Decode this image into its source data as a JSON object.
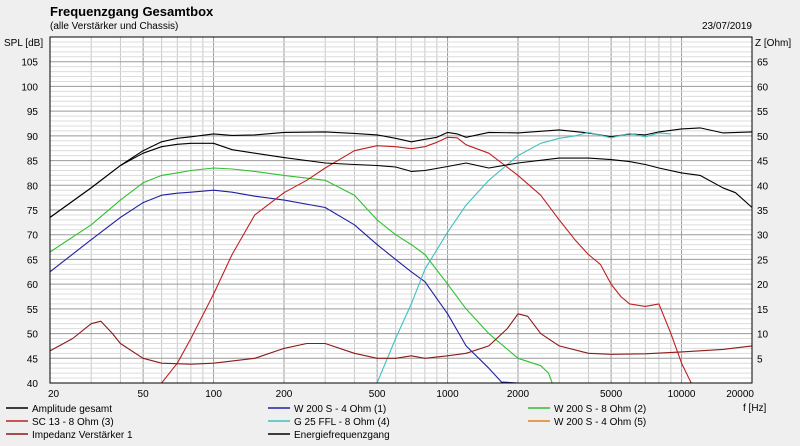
{
  "chart_data": {
    "type": "line",
    "title": "Frequenzgang Gesamtbox",
    "subtitle": "(alle Verstärker und Chassis)",
    "date": "23/07/2019",
    "y_left_label": "SPL [dB]",
    "y_right_label": "Z [Ohm]",
    "x_label": "f [Hz]",
    "x_scale": "log",
    "xlim": [
      20,
      20000
    ],
    "ylim_left": [
      40,
      110
    ],
    "ylim_right": [
      0,
      70
    ],
    "x_ticks": [
      20,
      50,
      100,
      200,
      500,
      1000,
      2000,
      5000,
      10000,
      20000
    ],
    "x_tick_labels": [
      "20",
      "50",
      "100",
      "200",
      "500",
      "1000",
      "2000",
      "5000",
      "10000",
      "20000"
    ],
    "y_left_ticks": [
      40,
      45,
      50,
      55,
      60,
      65,
      70,
      75,
      80,
      85,
      90,
      95,
      100,
      105
    ],
    "y_right_ticks": [
      5,
      10,
      15,
      20,
      25,
      30,
      35,
      40,
      45,
      50,
      55,
      60,
      65
    ],
    "grid": true,
    "series": [
      {
        "name": "Amplitude gesamt",
        "axis": "left",
        "color": "#000000",
        "x": [
          20,
          30,
          40,
          50,
          60,
          70,
          80,
          100,
          120,
          150,
          200,
          300,
          400,
          500,
          600,
          700,
          800,
          900,
          1000,
          1100,
          1200,
          1500,
          2000,
          3000,
          4000,
          5000,
          6000,
          7000,
          8000,
          10000,
          12000,
          15000,
          20000
        ],
        "y": [
          73.5,
          79.5,
          84,
          87,
          88.8,
          89.5,
          89.8,
          90.4,
          90.1,
          90.2,
          90.7,
          90.8,
          90.5,
          90.2,
          89.5,
          88.8,
          89.3,
          89.7,
          90.7,
          90.4,
          89.7,
          90.7,
          90.6,
          91.2,
          90.6,
          89.8,
          90.4,
          90.2,
          90.8,
          91.4,
          91.6,
          90.6,
          90.8
        ]
      },
      {
        "name": "W 200 S - 4 Ohm (1)",
        "axis": "left",
        "color": "#2020a0",
        "x": [
          20,
          30,
          40,
          50,
          60,
          70,
          80,
          100,
          120,
          150,
          200,
          300,
          400,
          500,
          600,
          700,
          800,
          1000,
          1200,
          1500,
          1700,
          2000
        ],
        "y": [
          62.5,
          69,
          73.5,
          76.5,
          78,
          78.4,
          78.6,
          79,
          78.6,
          77.8,
          77,
          75.5,
          72,
          68,
          65,
          62.5,
          60.5,
          54,
          47.5,
          43,
          40.2,
          40
        ]
      },
      {
        "name": "W 200 S - 8 Ohm (2)",
        "axis": "left",
        "color": "#30c030",
        "x": [
          20,
          30,
          40,
          50,
          60,
          70,
          80,
          100,
          120,
          150,
          200,
          300,
          400,
          500,
          600,
          700,
          800,
          1000,
          1200,
          1500,
          2000,
          2500,
          2700,
          2800
        ],
        "y": [
          66.5,
          72,
          77,
          80.5,
          82,
          82.5,
          83,
          83.5,
          83.3,
          82.8,
          82,
          81,
          78,
          73,
          70,
          68,
          66,
          60,
          55,
          50,
          45,
          43.5,
          42,
          40
        ]
      },
      {
        "name": "SC 13 - 8 Ohm (3)",
        "axis": "left",
        "color": "#c02020",
        "x": [
          60,
          70,
          80,
          100,
          120,
          150,
          200,
          250,
          300,
          400,
          500,
          600,
          700,
          800,
          900,
          1000,
          1100,
          1200,
          1500,
          2000,
          2500,
          3000,
          3500,
          4000,
          4500,
          5000,
          5500,
          6000,
          7000,
          8000,
          9000,
          10000,
          11000
        ],
        "y": [
          40,
          44,
          49,
          58,
          66,
          74,
          78.5,
          81,
          83.5,
          87,
          88,
          87.8,
          87.4,
          87.8,
          88.7,
          89.7,
          89.6,
          88.2,
          86.5,
          82,
          78,
          73,
          69,
          66,
          64,
          60,
          57.5,
          56,
          55.5,
          56,
          50,
          44,
          40
        ]
      },
      {
        "name": "G 25 FFL - 8 Ohm (4)",
        "axis": "left",
        "color": "#40c0c0",
        "x": [
          500,
          600,
          700,
          800,
          1000,
          1200,
          1500,
          2000,
          2500,
          3000,
          3500,
          4000,
          5000,
          6000,
          7000,
          8000,
          9000
        ],
        "y": [
          40,
          49,
          56,
          63,
          70.5,
          76,
          81,
          86,
          88.5,
          89.5,
          90,
          90.7,
          89.6,
          90.5,
          89.8,
          90.6,
          90.4
        ]
      },
      {
        "name": "W 200 S - 4 Ohm (5)",
        "axis": "left",
        "color": "#e08020",
        "x": [],
        "y": []
      },
      {
        "name": "Impedanz Verstärker 1",
        "axis": "right",
        "color": "#8b1a1a",
        "x": [
          20,
          25,
          30,
          33,
          37,
          40,
          50,
          60,
          80,
          100,
          150,
          200,
          250,
          300,
          400,
          500,
          600,
          700,
          800,
          1000,
          1200,
          1500,
          1800,
          2000,
          2200,
          2500,
          3000,
          4000,
          5000,
          7000,
          10000,
          15000,
          20000
        ],
        "y": [
          6.5,
          9,
          12,
          12.5,
          10,
          8,
          5,
          4,
          3.8,
          4,
          5,
          7,
          8,
          8,
          6,
          5,
          5,
          5.5,
          5,
          5.5,
          6,
          7.5,
          11,
          14,
          13.5,
          10,
          7.5,
          6,
          5.8,
          5.9,
          6.3,
          6.8,
          7.5
        ]
      },
      {
        "name": "Energiefrequenzgang",
        "axis": "left",
        "color": "#000000",
        "x": [
          20,
          30,
          40,
          50,
          60,
          70,
          80,
          100,
          120,
          150,
          200,
          300,
          400,
          500,
          600,
          700,
          800,
          1000,
          1200,
          1500,
          2000,
          3000,
          4000,
          5000,
          6000,
          7000,
          8000,
          10000,
          12000,
          15000,
          17000,
          20000
        ],
        "y": [
          73.5,
          79.5,
          84,
          86.5,
          87.8,
          88.3,
          88.5,
          88.5,
          87.2,
          86.5,
          85.6,
          84.5,
          84.2,
          84,
          83.7,
          82.8,
          83,
          83.8,
          84.5,
          83.5,
          84.5,
          85.5,
          85.5,
          85.2,
          84.8,
          84.2,
          83.5,
          82.5,
          82,
          79.5,
          78.5,
          75.5
        ]
      }
    ],
    "legend": [
      {
        "label": "Amplitude gesamt",
        "color": "#000000"
      },
      {
        "label": "W 200 S - 4 Ohm (1)",
        "color": "#2020a0"
      },
      {
        "label": "W 200 S - 8 Ohm (2)",
        "color": "#30c030"
      },
      {
        "label": "SC 13 - 8 Ohm (3)",
        "color": "#c02020"
      },
      {
        "label": "G 25 FFL - 8 Ohm (4)",
        "color": "#40c0c0"
      },
      {
        "label": "W 200 S - 4 Ohm (5)",
        "color": "#e08020"
      },
      {
        "label": "Impedanz Verstärker 1",
        "color": "#8b1a1a"
      },
      {
        "label": "Energiefrequenzgang",
        "color": "#000000"
      }
    ]
  }
}
